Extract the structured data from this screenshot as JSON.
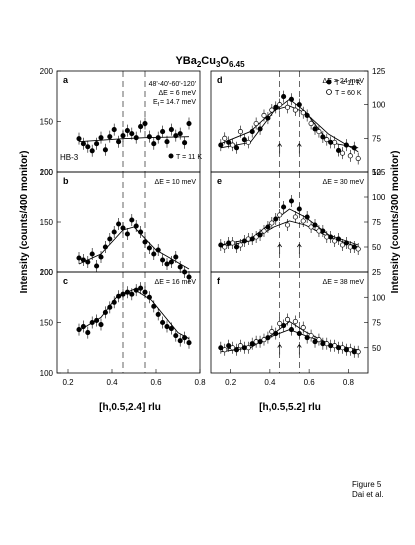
{
  "title": {
    "main": "YBa",
    "s1": "2",
    "mid": "Cu",
    "s2": "3",
    "end": "O",
    "s3": "6.45"
  },
  "ylabel_left": "Intensity (counts/400 monitor)",
  "ylabel_right": "Intensity (counts/300 monitor)",
  "xlabel_left": "[h,0.5,2.4] rlu",
  "xlabel_right": "[h,0.5,5.2] rlu",
  "instrument": "HB-3",
  "collimation": "48'-40'-60'-120'",
  "de_header": "ΔE = 6 meV",
  "ef": "E",
  "ef_sub": "f",
  "ef_val": "= 14.7 meV",
  "legend_left": "T = 11 K",
  "legend_right": [
    "T = 11 K",
    "T = 60 K"
  ],
  "footer": [
    "Figure 5",
    "Dai et al."
  ],
  "chart_data": [
    {
      "panel": "a",
      "type": "scatter",
      "energy": "",
      "xlim": [
        0.15,
        0.8
      ],
      "ylim": [
        100,
        200
      ],
      "yticks": [
        "100",
        "150",
        "200"
      ],
      "xticks": [],
      "points_11K": [
        [
          0.25,
          133
        ],
        [
          0.27,
          128
        ],
        [
          0.29,
          125
        ],
        [
          0.31,
          121
        ],
        [
          0.33,
          128
        ],
        [
          0.35,
          134
        ],
        [
          0.37,
          122
        ],
        [
          0.39,
          135
        ],
        [
          0.41,
          142
        ],
        [
          0.43,
          130
        ],
        [
          0.45,
          136
        ],
        [
          0.47,
          141
        ],
        [
          0.49,
          138
        ],
        [
          0.51,
          134
        ],
        [
          0.53,
          145
        ],
        [
          0.55,
          148
        ],
        [
          0.57,
          135
        ],
        [
          0.59,
          128
        ],
        [
          0.61,
          134
        ],
        [
          0.63,
          140
        ],
        [
          0.65,
          130
        ],
        [
          0.67,
          142
        ],
        [
          0.69,
          136
        ],
        [
          0.71,
          138
        ],
        [
          0.73,
          129
        ],
        [
          0.75,
          148
        ]
      ],
      "fit_11K": [
        [
          0.25,
          130
        ],
        [
          0.45,
          133
        ],
        [
          0.55,
          134
        ],
        [
          0.75,
          135
        ]
      ]
    },
    {
      "panel": "b",
      "type": "scatter",
      "energy": "ΔE = 10 meV",
      "xlim": [
        0.15,
        0.8
      ],
      "ylim": [
        100,
        200
      ],
      "yticks": [
        "100",
        "150",
        "200"
      ],
      "xticks": [],
      "points_11K": [
        [
          0.25,
          114
        ],
        [
          0.27,
          112
        ],
        [
          0.29,
          110
        ],
        [
          0.31,
          118
        ],
        [
          0.33,
          106
        ],
        [
          0.35,
          115
        ],
        [
          0.37,
          125
        ],
        [
          0.39,
          133
        ],
        [
          0.41,
          140
        ],
        [
          0.43,
          148
        ],
        [
          0.45,
          144
        ],
        [
          0.47,
          138
        ],
        [
          0.49,
          152
        ],
        [
          0.51,
          146
        ],
        [
          0.53,
          140
        ],
        [
          0.55,
          130
        ],
        [
          0.57,
          124
        ],
        [
          0.59,
          118
        ],
        [
          0.61,
          122
        ],
        [
          0.63,
          112
        ],
        [
          0.65,
          108
        ],
        [
          0.67,
          110
        ],
        [
          0.69,
          115
        ],
        [
          0.71,
          105
        ],
        [
          0.73,
          100
        ],
        [
          0.75,
          95
        ]
      ],
      "fit_11K": [
        [
          0.25,
          108
        ],
        [
          0.35,
          118
        ],
        [
          0.45,
          142
        ],
        [
          0.5,
          145
        ],
        [
          0.6,
          122
        ],
        [
          0.75,
          103
        ]
      ]
    },
    {
      "panel": "c",
      "type": "scatter",
      "energy": "ΔE = 16 meV",
      "xlim": [
        0.15,
        0.8
      ],
      "ylim": [
        100,
        200
      ],
      "yticks": [
        "100",
        "150",
        "200"
      ],
      "xticks": [
        "0.2",
        "0.4",
        "0.6",
        "0.8"
      ],
      "points_11K": [
        [
          0.25,
          143
        ],
        [
          0.27,
          146
        ],
        [
          0.29,
          140
        ],
        [
          0.31,
          150
        ],
        [
          0.33,
          152
        ],
        [
          0.35,
          148
        ],
        [
          0.37,
          160
        ],
        [
          0.39,
          165
        ],
        [
          0.41,
          170
        ],
        [
          0.43,
          176
        ],
        [
          0.45,
          178
        ],
        [
          0.47,
          180
        ],
        [
          0.49,
          178
        ],
        [
          0.51,
          182
        ],
        [
          0.53,
          184
        ],
        [
          0.55,
          180
        ],
        [
          0.57,
          175
        ],
        [
          0.59,
          166
        ],
        [
          0.61,
          158
        ],
        [
          0.63,
          150
        ],
        [
          0.65,
          146
        ],
        [
          0.67,
          144
        ],
        [
          0.69,
          137
        ],
        [
          0.71,
          132
        ],
        [
          0.73,
          135
        ],
        [
          0.75,
          130
        ]
      ],
      "fit_11K": [
        [
          0.25,
          142
        ],
        [
          0.35,
          155
        ],
        [
          0.42,
          175
        ],
        [
          0.5,
          183
        ],
        [
          0.58,
          172
        ],
        [
          0.7,
          140
        ],
        [
          0.75,
          134
        ]
      ]
    },
    {
      "panel": "d",
      "type": "scatter",
      "energy": "ΔE = 24 meV",
      "xlim": [
        0.1,
        0.9
      ],
      "ylim": [
        50,
        125
      ],
      "yticks": [
        "50",
        "75",
        "100",
        "125"
      ],
      "xticks": [],
      "points_11K": [
        [
          0.15,
          70
        ],
        [
          0.19,
          72
        ],
        [
          0.23,
          68
        ],
        [
          0.27,
          74
        ],
        [
          0.31,
          80
        ],
        [
          0.35,
          82
        ],
        [
          0.39,
          90
        ],
        [
          0.43,
          98
        ],
        [
          0.47,
          106
        ],
        [
          0.51,
          104
        ],
        [
          0.55,
          100
        ],
        [
          0.59,
          92
        ],
        [
          0.63,
          82
        ],
        [
          0.67,
          76
        ],
        [
          0.71,
          72
        ],
        [
          0.75,
          66
        ],
        [
          0.79,
          70
        ],
        [
          0.83,
          68
        ]
      ],
      "points_60K": [
        [
          0.17,
          75
        ],
        [
          0.21,
          70
        ],
        [
          0.25,
          80
        ],
        [
          0.29,
          72
        ],
        [
          0.33,
          86
        ],
        [
          0.37,
          92
        ],
        [
          0.41,
          96
        ],
        [
          0.45,
          100
        ],
        [
          0.49,
          98
        ],
        [
          0.53,
          96
        ],
        [
          0.57,
          94
        ],
        [
          0.61,
          86
        ],
        [
          0.65,
          80
        ],
        [
          0.69,
          74
        ],
        [
          0.73,
          72
        ],
        [
          0.77,
          64
        ],
        [
          0.81,
          62
        ],
        [
          0.85,
          60
        ]
      ],
      "fit_11K": [
        [
          0.15,
          68
        ],
        [
          0.3,
          72
        ],
        [
          0.42,
          95
        ],
        [
          0.5,
          104
        ],
        [
          0.58,
          95
        ],
        [
          0.7,
          72
        ],
        [
          0.85,
          68
        ]
      ],
      "fit_60K": [
        [
          0.15,
          71
        ],
        [
          0.3,
          80
        ],
        [
          0.42,
          96
        ],
        [
          0.5,
          99
        ],
        [
          0.58,
          94
        ],
        [
          0.7,
          78
        ],
        [
          0.85,
          65
        ]
      ]
    },
    {
      "panel": "e",
      "type": "scatter",
      "energy": "ΔE = 30 meV",
      "xlim": [
        0.1,
        0.9
      ],
      "ylim": [
        25,
        125
      ],
      "yticks": [
        "25",
        "50",
        "75",
        "100",
        "125"
      ],
      "xticks": [],
      "points_11K": [
        [
          0.15,
          52
        ],
        [
          0.19,
          54
        ],
        [
          0.23,
          50
        ],
        [
          0.27,
          56
        ],
        [
          0.31,
          58
        ],
        [
          0.35,
          62
        ],
        [
          0.39,
          70
        ],
        [
          0.43,
          78
        ],
        [
          0.47,
          90
        ],
        [
          0.51,
          96
        ],
        [
          0.55,
          88
        ],
        [
          0.59,
          80
        ],
        [
          0.63,
          72
        ],
        [
          0.67,
          66
        ],
        [
          0.71,
          60
        ],
        [
          0.75,
          58
        ],
        [
          0.79,
          54
        ],
        [
          0.83,
          50
        ]
      ],
      "points_60K": [
        [
          0.17,
          50
        ],
        [
          0.21,
          54
        ],
        [
          0.25,
          52
        ],
        [
          0.29,
          58
        ],
        [
          0.33,
          60
        ],
        [
          0.37,
          66
        ],
        [
          0.41,
          74
        ],
        [
          0.45,
          82
        ],
        [
          0.49,
          72
        ],
        [
          0.53,
          80
        ],
        [
          0.57,
          76
        ],
        [
          0.61,
          70
        ],
        [
          0.65,
          66
        ],
        [
          0.69,
          60
        ],
        [
          0.73,
          56
        ],
        [
          0.77,
          52
        ],
        [
          0.81,
          50
        ],
        [
          0.85,
          48
        ]
      ],
      "fit_11K": [
        [
          0.15,
          52
        ],
        [
          0.3,
          58
        ],
        [
          0.42,
          76
        ],
        [
          0.5,
          88
        ],
        [
          0.58,
          80
        ],
        [
          0.7,
          62
        ],
        [
          0.85,
          52
        ]
      ],
      "fit_60K": [
        [
          0.15,
          50
        ],
        [
          0.3,
          56
        ],
        [
          0.42,
          70
        ],
        [
          0.5,
          76
        ],
        [
          0.58,
          72
        ],
        [
          0.7,
          60
        ],
        [
          0.85,
          50
        ]
      ]
    },
    {
      "panel": "f",
      "type": "scatter",
      "energy": "ΔE = 38 meV",
      "xlim": [
        0.1,
        0.9
      ],
      "ylim": [
        25,
        125
      ],
      "yticks": [
        "50",
        "75",
        "100"
      ],
      "xticks": [
        "0.2",
        "0.4",
        "0.6",
        "0.8"
      ],
      "points_11K": [
        [
          0.15,
          50
        ],
        [
          0.19,
          52
        ],
        [
          0.23,
          48
        ],
        [
          0.27,
          50
        ],
        [
          0.31,
          54
        ],
        [
          0.35,
          56
        ],
        [
          0.39,
          60
        ],
        [
          0.43,
          64
        ],
        [
          0.47,
          72
        ],
        [
          0.51,
          68
        ],
        [
          0.55,
          64
        ],
        [
          0.59,
          60
        ],
        [
          0.63,
          56
        ],
        [
          0.67,
          54
        ],
        [
          0.71,
          52
        ],
        [
          0.75,
          50
        ],
        [
          0.79,
          48
        ],
        [
          0.83,
          46
        ]
      ],
      "points_60K": [
        [
          0.17,
          48
        ],
        [
          0.21,
          50
        ],
        [
          0.25,
          52
        ],
        [
          0.29,
          50
        ],
        [
          0.33,
          56
        ],
        [
          0.37,
          58
        ],
        [
          0.41,
          66
        ],
        [
          0.45,
          74
        ],
        [
          0.49,
          78
        ],
        [
          0.53,
          76
        ],
        [
          0.57,
          70
        ],
        [
          0.61,
          62
        ],
        [
          0.65,
          58
        ],
        [
          0.69,
          54
        ],
        [
          0.73,
          52
        ],
        [
          0.77,
          50
        ],
        [
          0.81,
          48
        ],
        [
          0.85,
          46
        ]
      ],
      "fit_11K": [
        [
          0.15,
          48
        ],
        [
          0.3,
          52
        ],
        [
          0.42,
          62
        ],
        [
          0.5,
          68
        ],
        [
          0.58,
          62
        ],
        [
          0.7,
          54
        ],
        [
          0.85,
          48
        ]
      ],
      "fit_60K": [
        [
          0.15,
          46
        ],
        [
          0.3,
          50
        ],
        [
          0.42,
          64
        ],
        [
          0.5,
          76
        ],
        [
          0.58,
          66
        ],
        [
          0.7,
          54
        ],
        [
          0.85,
          46
        ]
      ]
    }
  ]
}
